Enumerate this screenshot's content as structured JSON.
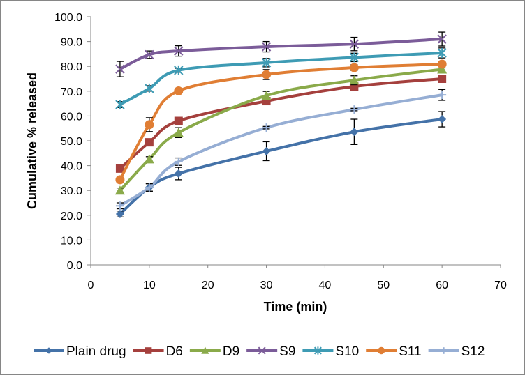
{
  "chart_data": {
    "type": "line",
    "title": "",
    "xlabel": "Time (min)",
    "ylabel": "Cumulative % released",
    "xlim": [
      0,
      70
    ],
    "ylim": [
      0,
      100
    ],
    "x_ticks": [
      "0",
      "10",
      "20",
      "30",
      "40",
      "50",
      "60",
      "70"
    ],
    "y_ticks": [
      "0.0",
      "10.0",
      "20.0",
      "30.0",
      "40.0",
      "50.0",
      "60.0",
      "70.0",
      "80.0",
      "90.0",
      "100.0"
    ],
    "grid": false,
    "legend_position": "bottom",
    "smooth": true,
    "x": [
      5,
      10,
      15,
      30,
      45,
      60
    ],
    "series": [
      {
        "name": "Plain drug",
        "color": "#4472A8",
        "marker": "diamond",
        "values": [
          20.5,
          31.2,
          36.8,
          45.8,
          53.6,
          58.7
        ],
        "errors": [
          1.2,
          1.5,
          2.5,
          3.8,
          5.1,
          3.1
        ]
      },
      {
        "name": "D6",
        "color": "#A5403D",
        "marker": "square",
        "values": [
          38.8,
          49.4,
          58.0,
          66.0,
          71.9,
          75.0
        ],
        "errors": [
          1.0,
          1.0,
          1.2,
          1.0,
          1.0,
          0.8
        ]
      },
      {
        "name": "D9",
        "color": "#8AAA4A",
        "marker": "triangle",
        "values": [
          30.0,
          42.6,
          53.3,
          68.2,
          74.4,
          78.8
        ],
        "errors": [
          1.0,
          1.0,
          2.0,
          1.7,
          1.8,
          1.0
        ]
      },
      {
        "name": "S9",
        "color": "#7B5C99",
        "marker": "x",
        "values": [
          78.9,
          84.7,
          86.2,
          87.9,
          89.0,
          91.0
        ],
        "errors": [
          3.1,
          1.5,
          2.1,
          2.1,
          2.7,
          2.8
        ]
      },
      {
        "name": "S10",
        "color": "#3E9BB4",
        "marker": "asterisk",
        "values": [
          64.6,
          71.1,
          78.4,
          81.5,
          83.6,
          85.4
        ],
        "errors": [
          1.2,
          1.1,
          0.8,
          1.7,
          1.7,
          2.0
        ]
      },
      {
        "name": "S11",
        "color": "#E07E34",
        "marker": "circle",
        "values": [
          34.3,
          56.5,
          70.1,
          76.7,
          79.5,
          80.9
        ],
        "errors": [
          1.0,
          2.8,
          0.6,
          2.0,
          1.2,
          0.8
        ]
      },
      {
        "name": "S12",
        "color": "#96AED4",
        "marker": "plus",
        "values": [
          23.8,
          31.2,
          41.6,
          55.3,
          62.6,
          68.5
        ],
        "errors": [
          1.2,
          1.5,
          1.5,
          0.5,
          0.5,
          2.2
        ]
      }
    ]
  }
}
